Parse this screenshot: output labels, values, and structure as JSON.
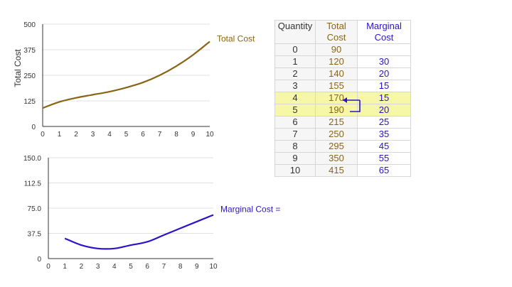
{
  "chart_data": [
    {
      "type": "line",
      "ylabel": "Total Cost",
      "xlabel": "",
      "x": [
        0,
        1,
        2,
        3,
        4,
        5,
        6,
        7,
        8,
        9,
        10
      ],
      "y_ticks": [
        0,
        125,
        250,
        375,
        500
      ],
      "x_ticks": [
        0,
        1,
        2,
        3,
        4,
        5,
        6,
        7,
        8,
        9,
        10
      ],
      "ylim": [
        0,
        500
      ],
      "xlim": [
        0,
        10
      ],
      "series": [
        {
          "name": "Total Cost",
          "values": [
            90,
            120,
            140,
            155,
            170,
            190,
            215,
            250,
            295,
            350,
            415
          ],
          "color": "#8a6414"
        }
      ]
    },
    {
      "type": "line",
      "xlabel": "",
      "ylabel": "",
      "x": [
        1,
        2,
        3,
        4,
        5,
        6,
        7,
        8,
        9,
        10
      ],
      "y_ticks": [
        "0",
        "37.5",
        "75.0",
        "112.5",
        "150.0"
      ],
      "x_ticks": [
        0,
        1,
        2,
        3,
        4,
        5,
        6,
        7,
        8,
        9,
        10
      ],
      "ylim": [
        0,
        150
      ],
      "xlim": [
        0,
        10
      ],
      "series": [
        {
          "name": "Marginal Cost =",
          "values": [
            30,
            20,
            15,
            15,
            20,
            25,
            35,
            45,
            55,
            65
          ],
          "color": "#2a14c8"
        }
      ]
    }
  ],
  "table": {
    "headers": {
      "quantity": "Quantity",
      "total_line1": "Total",
      "total_line2": "Cost",
      "marginal_line1": "Marginal",
      "marginal_line2": "Cost"
    },
    "rows": [
      {
        "q": "0",
        "tc": "90",
        "mc": ""
      },
      {
        "q": "1",
        "tc": "120",
        "mc": "30"
      },
      {
        "q": "2",
        "tc": "140",
        "mc": "20"
      },
      {
        "q": "3",
        "tc": "155",
        "mc": "15"
      },
      {
        "q": "4",
        "tc": "170",
        "mc": "15"
      },
      {
        "q": "5",
        "tc": "190",
        "mc": "20"
      },
      {
        "q": "6",
        "tc": "215",
        "mc": "25"
      },
      {
        "q": "7",
        "tc": "250",
        "mc": "35"
      },
      {
        "q": "8",
        "tc": "295",
        "mc": "45"
      },
      {
        "q": "9",
        "tc": "350",
        "mc": "55"
      },
      {
        "q": "10",
        "tc": "415",
        "mc": "65"
      }
    ],
    "highlighted_rows": [
      4,
      5
    ]
  },
  "colors": {
    "total_cost": "#8a6414",
    "marginal_cost": "#2a14c8",
    "highlight": "#f7f7a8",
    "axis": "#333333"
  }
}
